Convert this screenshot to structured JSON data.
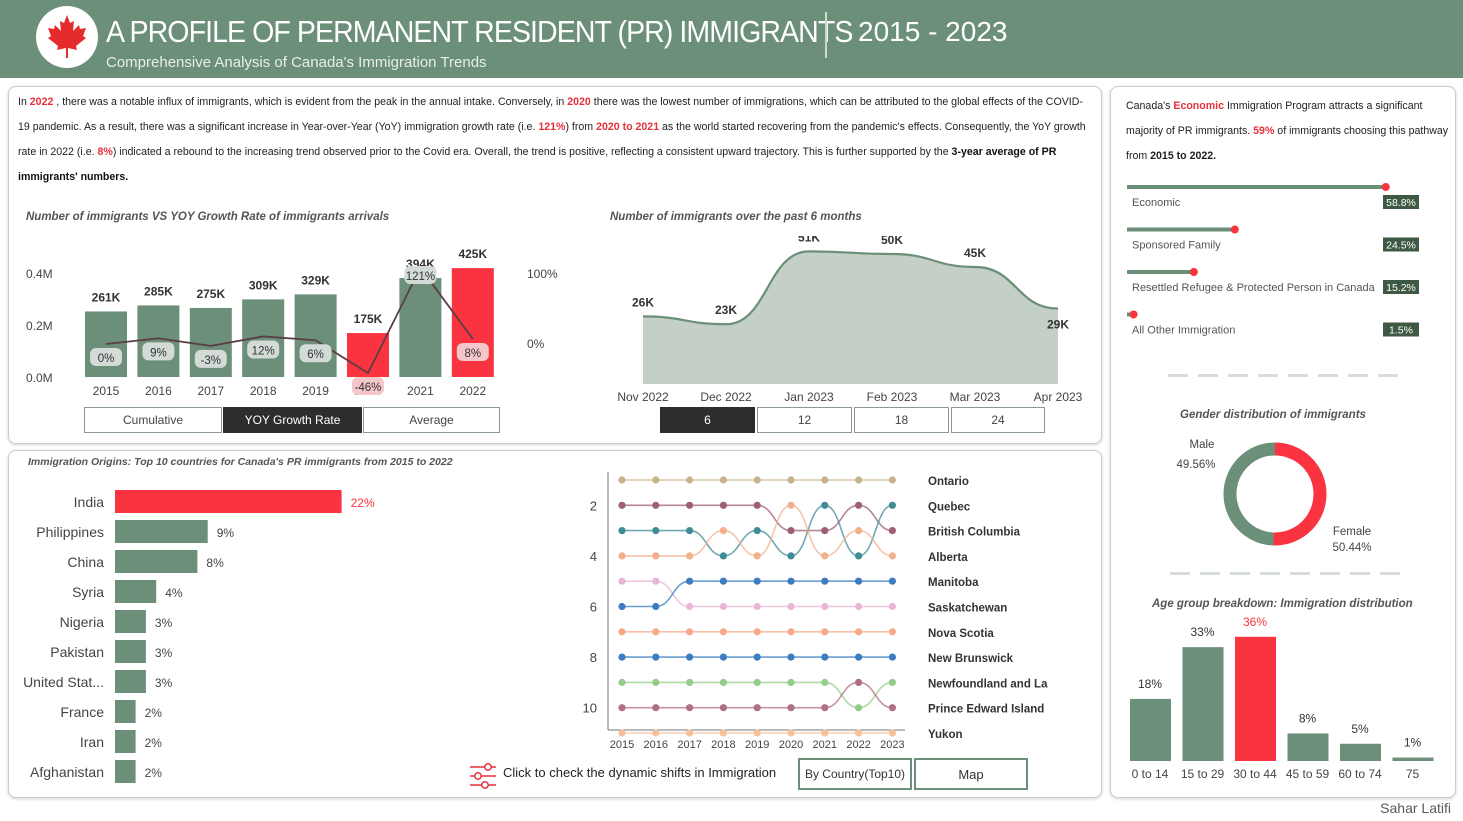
{
  "header": {
    "title": "A PROFILE OF PERMANENT RESIDENT (PR) IMMIGRANTS",
    "subtitle": "Comprehensive Analysis of Canada's Immigration Trends",
    "years": "2015 - 2023"
  },
  "intro": {
    "p1": "In ",
    "y2022": "2022",
    "p2": " , there was a notable influx of immigrants, which is evident from the peak in the annual intake. Conversely, in ",
    "y2020": "2020",
    "p3": " there was the lowest number of immigrations, which can be attributed to the global effects of the COVID-19 pandemic. As a result, there was a significant increase in Year-over-Year (YoY) immigration growth rate (i.e. ",
    "g121": "121%",
    "p4": ") from ",
    "range": "2020 to 2021",
    "p5": " as the world started recovering from the pandemic's effects. Consequently, the YoY growth rate in 2022 (i.e. ",
    "g8": "8%",
    "p6": ") indicated a rebound to the increasing trend observed prior to the Covid era. Overall, the trend is positive, reflecting a consistent upward trajectory. This is further supported by the ",
    "avg": "3-year average of PR immigrants' numbers.",
    "p7": ""
  },
  "charts": {
    "yoy_title": "Number of immigrants VS YOY Growth Rate of immigrants arrivals",
    "six_title": "Number of immigrants over the past 6 months",
    "origins_title": "Immigration Origins: Top 10 countries for Canada's PR immigrants from 2015 to 2022",
    "gender_title": "Gender distribution of immigrants",
    "age_title": "Age group breakdown: Immigration distribution"
  },
  "yoy_buttons": [
    "Cumulative",
    "YOY Growth Rate",
    "Average"
  ],
  "month_buttons": [
    "6",
    "12",
    "18",
    "24"
  ],
  "right_text": {
    "a": "Canada's ",
    "econ": "Economic",
    "b": " Immigration Program attracts a significant majority of PR immigrants. ",
    "pct": "59%",
    "c": " of immigrants choosing this pathway from ",
    "range": "2015 to 2022."
  },
  "programs": [
    {
      "name": "Economic",
      "value": "58.8%",
      "frac": 0.588
    },
    {
      "name": "Sponsored Family",
      "value": "24.5%",
      "frac": 0.245
    },
    {
      "name": "Resettled Refugee & Protected Person in Canada",
      "value": "15.2%",
      "frac": 0.152
    },
    {
      "name": "All Other Immigration",
      "value": "1.5%",
      "frac": 0.015
    }
  ],
  "gender": {
    "male_label": "Male",
    "male_value": "49.56%",
    "female_label": "Female",
    "female_value": "50.44%",
    "male": 49.56,
    "female": 50.44
  },
  "bottom": {
    "dyn_note": "Click to check the dynamic shifts in Immigration",
    "btn_country": "By Country(Top10)",
    "btn_map": "Map"
  },
  "author": "Sahar Latifi",
  "colors": {
    "green": "#6b8f78",
    "red": "#f9333f",
    "header": "#6b8f78"
  },
  "chart_data": [
    {
      "type": "bar",
      "title": "Number of immigrants VS YOY Growth Rate of immigrants arrivals",
      "categories": [
        "2015",
        "2016",
        "2017",
        "2018",
        "2019",
        "2020",
        "2021",
        "2022"
      ],
      "series": [
        {
          "values": [
            261,
            285,
            275,
            309,
            329,
            175,
            394,
            425
          ],
          "labels": [
            "261K",
            "285K",
            "275K",
            "309K",
            "329K",
            "175K",
            "394K",
            "425K"
          ]
        },
        {
          "values": [
            0,
            9,
            -3,
            12,
            6,
            -46,
            121,
            8
          ],
          "labels": [
            "0%",
            "9%",
            "-3%",
            "12%",
            "6%",
            "-46%",
            "121%",
            "8%"
          ]
        }
      ],
      "highlight": [
        "2020",
        "2022"
      ],
      "y_ticks": [
        "0.0M",
        "0.2M",
        "0.4M"
      ],
      "y2_ticks": [
        "0%",
        "100%"
      ]
    },
    {
      "type": "area",
      "title": "Number of immigrants over the past 6 months",
      "categories": [
        "Nov 2022",
        "Dec 2022",
        "Jan 2023",
        "Feb 2023",
        "Mar 2023",
        "Apr 2023"
      ],
      "values": [
        26,
        23,
        51,
        50,
        45,
        29
      ],
      "labels": [
        "26K",
        "23K",
        "51K",
        "50K",
        "45K",
        "29K"
      ]
    },
    {
      "type": "bar",
      "title": "Immigration Origins: Top 10 countries for Canada's PR immigrants from 2015 to 2022",
      "categories": [
        "India",
        "Philippines",
        "China",
        "Syria",
        "Nigeria",
        "Pakistan",
        "United Stat...",
        "France",
        "Iran",
        "Afghanistan"
      ],
      "values": [
        22,
        9,
        8,
        4,
        3,
        3,
        3,
        2,
        2,
        2
      ],
      "labels": [
        "22%",
        "9%",
        "8%",
        "4%",
        "3%",
        "3%",
        "3%",
        "2%",
        "2%",
        "2%"
      ]
    },
    {
      "type": "line",
      "x": [
        "2015",
        "2016",
        "2017",
        "2018",
        "2019",
        "2020",
        "2021",
        "2022",
        "2023"
      ],
      "y_ticks": [
        "2",
        "4",
        "6",
        "8",
        "10"
      ],
      "series": [
        {
          "name": "Ontario",
          "color": "#c9b48a",
          "ranks": [
            1,
            1,
            1,
            1,
            1,
            1,
            1,
            1,
            1
          ]
        },
        {
          "name": "Quebec",
          "color": "#9e5f72",
          "ranks": [
            2,
            2,
            2,
            2,
            2,
            3,
            3,
            2,
            3
          ]
        },
        {
          "name": "British Columbia",
          "color": "#3f8c97",
          "ranks": [
            3,
            3,
            3,
            4,
            3,
            4,
            2,
            4,
            2
          ]
        },
        {
          "name": "Alberta",
          "color": "#f3b08c",
          "ranks": [
            4,
            4,
            4,
            3,
            4,
            2,
            4,
            3,
            4
          ]
        },
        {
          "name": "Manitoba",
          "color": "#e8b6d6",
          "ranks": [
            5,
            5,
            6,
            6,
            6,
            6,
            6,
            6,
            6
          ]
        },
        {
          "name": "Saskatchewan",
          "color": "#3b7dc0",
          "ranks": [
            6,
            6,
            5,
            5,
            5,
            5,
            5,
            5,
            5
          ]
        },
        {
          "name": "Nova Scotia",
          "color": "#f7a98a",
          "ranks": [
            7,
            7,
            7,
            7,
            7,
            7,
            7,
            7,
            7
          ]
        },
        {
          "name": "New Brunswick",
          "color": "#3b7dc0",
          "ranks": [
            8,
            8,
            8,
            8,
            8,
            8,
            8,
            8,
            8
          ]
        },
        {
          "name": "Newfoundland and La",
          "color": "#96cc8a",
          "ranks": [
            9,
            9,
            9,
            9,
            9,
            9,
            9,
            10,
            9
          ]
        },
        {
          "name": "Prince Edward Island",
          "color": "#b07082",
          "ranks": [
            10,
            10,
            10,
            10,
            10,
            10,
            10,
            9,
            10
          ]
        },
        {
          "name": "Yukon",
          "color": "#f7c09a",
          "ranks": [
            11,
            11,
            11,
            11,
            11,
            11,
            11,
            11,
            11
          ]
        }
      ]
    },
    {
      "type": "bar",
      "title": "Age group breakdown: Immigration distribution",
      "categories": [
        "0 to 14",
        "15 to 29",
        "30 to 44",
        "45 to 59",
        "60 to 74",
        "75"
      ],
      "values": [
        18,
        33,
        36,
        8,
        5,
        1
      ],
      "labels": [
        "18%",
        "33%",
        "36%",
        "8%",
        "5%",
        "1%"
      ],
      "highlight": [
        "30 to 44"
      ]
    }
  ]
}
